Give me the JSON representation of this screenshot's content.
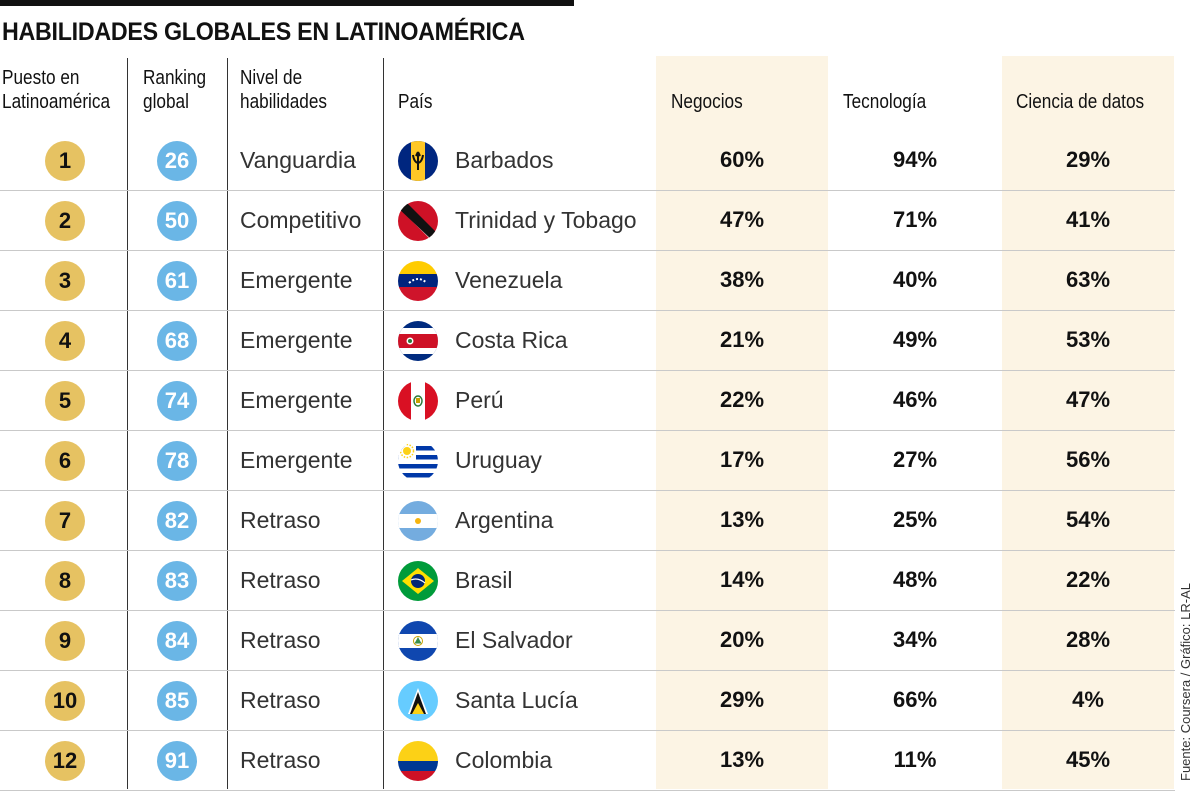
{
  "title": "HABILIDADES GLOBALES EN LATINOAMÉRICA",
  "source": "Fuente: Coursera / Gráfico: LR-AL",
  "colors": {
    "gold": "#e6c262",
    "blue": "#6ab6e6",
    "shade": "#fcf4e4"
  },
  "headers": {
    "puesto": [
      "Puesto en",
      "Latinoamérica"
    ],
    "ranking": [
      "Ranking",
      "global"
    ],
    "nivel": [
      "Nivel de",
      "habilidades"
    ],
    "pais": "País",
    "negocios": "Negocios",
    "tecnologia": "Tecnología",
    "ciencia": "Ciencia de datos"
  },
  "chart_data": {
    "type": "table",
    "title": "HABILIDADES GLOBALES EN LATINOAMÉRICA",
    "columns": [
      "Puesto en Latinoamérica",
      "Ranking global",
      "Nivel de habilidades",
      "País",
      "Negocios",
      "Tecnología",
      "Ciencia de datos"
    ],
    "rows": [
      {
        "puesto": "1",
        "ranking": "26",
        "nivel": "Vanguardia",
        "pais": "Barbados",
        "flag": "barbados-flag-icon",
        "negocios": "60%",
        "tecnologia": "94%",
        "ciencia": "29%"
      },
      {
        "puesto": "2",
        "ranking": "50",
        "nivel": "Competitivo",
        "pais": "Trinidad y Tobago",
        "flag": "trinidad-flag-icon",
        "negocios": "47%",
        "tecnologia": "71%",
        "ciencia": "41%"
      },
      {
        "puesto": "3",
        "ranking": "61",
        "nivel": "Emergente",
        "pais": "Venezuela",
        "flag": "venezuela-flag-icon",
        "negocios": "38%",
        "tecnologia": "40%",
        "ciencia": "63%"
      },
      {
        "puesto": "4",
        "ranking": "68",
        "nivel": "Emergente",
        "pais": "Costa Rica",
        "flag": "costa-rica-flag-icon",
        "negocios": "21%",
        "tecnologia": "49%",
        "ciencia": "53%"
      },
      {
        "puesto": "5",
        "ranking": "74",
        "nivel": "Emergente",
        "pais": "Perú",
        "flag": "peru-flag-icon",
        "negocios": "22%",
        "tecnologia": "46%",
        "ciencia": "47%"
      },
      {
        "puesto": "6",
        "ranking": "78",
        "nivel": "Emergente",
        "pais": "Uruguay",
        "flag": "uruguay-flag-icon",
        "negocios": "17%",
        "tecnologia": "27%",
        "ciencia": "56%"
      },
      {
        "puesto": "7",
        "ranking": "82",
        "nivel": "Retraso",
        "pais": "Argentina",
        "flag": "argentina-flag-icon",
        "negocios": "13%",
        "tecnologia": "25%",
        "ciencia": "54%"
      },
      {
        "puesto": "8",
        "ranking": "83",
        "nivel": "Retraso",
        "pais": "Brasil",
        "flag": "brasil-flag-icon",
        "negocios": "14%",
        "tecnologia": "48%",
        "ciencia": "22%"
      },
      {
        "puesto": "9",
        "ranking": "84",
        "nivel": "Retraso",
        "pais": "El Salvador",
        "flag": "el-salvador-flag-icon",
        "negocios": "20%",
        "tecnologia": "34%",
        "ciencia": "28%"
      },
      {
        "puesto": "10",
        "ranking": "85",
        "nivel": "Retraso",
        "pais": "Santa Lucía",
        "flag": "santa-lucia-flag-icon",
        "negocios": "29%",
        "tecnologia": "66%",
        "ciencia": "4%"
      },
      {
        "puesto": "12",
        "ranking": "91",
        "nivel": "Retraso",
        "pais": "Colombia",
        "flag": "colombia-flag-icon",
        "negocios": "13%",
        "tecnologia": "11%",
        "ciencia": "45%"
      }
    ]
  }
}
